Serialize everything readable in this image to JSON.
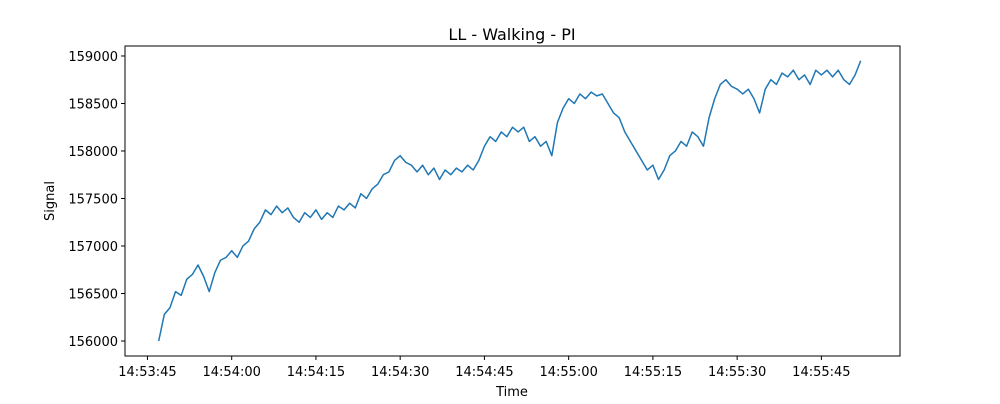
{
  "chart_data": {
    "type": "line",
    "title": "LL - Walking - PI",
    "x_label": "Time",
    "y_label": "Signal",
    "x": [
      "14:53:47",
      "14:53:48",
      "14:53:49",
      "14:53:50",
      "14:53:51",
      "14:53:52",
      "14:53:53",
      "14:53:54",
      "14:53:55",
      "14:53:56",
      "14:53:57",
      "14:53:58",
      "14:53:59",
      "14:54:00",
      "14:54:01",
      "14:54:02",
      "14:54:03",
      "14:54:04",
      "14:54:05",
      "14:54:06",
      "14:54:07",
      "14:54:08",
      "14:54:09",
      "14:54:10",
      "14:54:11",
      "14:54:12",
      "14:54:13",
      "14:54:14",
      "14:54:15",
      "14:54:16",
      "14:54:17",
      "14:54:18",
      "14:54:19",
      "14:54:20",
      "14:54:21",
      "14:54:22",
      "14:54:23",
      "14:54:24",
      "14:54:25",
      "14:54:26",
      "14:54:27",
      "14:54:28",
      "14:54:29",
      "14:54:30",
      "14:54:31",
      "14:54:32",
      "14:54:33",
      "14:54:34",
      "14:54:35",
      "14:54:36",
      "14:54:37",
      "14:54:38",
      "14:54:39",
      "14:54:40",
      "14:54:41",
      "14:54:42",
      "14:54:43",
      "14:54:44",
      "14:54:45",
      "14:54:46",
      "14:54:47",
      "14:54:48",
      "14:54:49",
      "14:54:50",
      "14:54:51",
      "14:54:52",
      "14:54:53",
      "14:54:54",
      "14:54:55",
      "14:54:56",
      "14:54:57",
      "14:54:58",
      "14:54:59",
      "14:55:00",
      "14:55:01",
      "14:55:02",
      "14:55:03",
      "14:55:04",
      "14:55:05",
      "14:55:06",
      "14:55:07",
      "14:55:08",
      "14:55:09",
      "14:55:10",
      "14:55:11",
      "14:55:12",
      "14:55:13",
      "14:55:14",
      "14:55:15",
      "14:55:16",
      "14:55:17",
      "14:55:18",
      "14:55:19",
      "14:55:20",
      "14:55:21",
      "14:55:22",
      "14:55:23",
      "14:55:24",
      "14:55:25",
      "14:55:26",
      "14:55:27",
      "14:55:28",
      "14:55:29",
      "14:55:30",
      "14:55:31",
      "14:55:32",
      "14:55:33",
      "14:55:34",
      "14:55:35",
      "14:55:36",
      "14:55:37",
      "14:55:38",
      "14:55:39",
      "14:55:40",
      "14:55:41",
      "14:55:42",
      "14:55:43",
      "14:55:44",
      "14:55:45",
      "14:55:46",
      "14:55:47",
      "14:55:48",
      "14:55:49",
      "14:55:50",
      "14:55:51",
      "14:55:52"
    ],
    "series": [
      {
        "name": "Signal",
        "color": "#1f77b4",
        "values": [
          156000,
          156280,
          156350,
          156520,
          156480,
          156650,
          156700,
          156800,
          156680,
          156520,
          156720,
          156850,
          156880,
          156950,
          156880,
          157000,
          157050,
          157180,
          157250,
          157380,
          157330,
          157420,
          157350,
          157400,
          157300,
          157250,
          157350,
          157300,
          157380,
          157280,
          157350,
          157300,
          157420,
          157380,
          157450,
          157400,
          157550,
          157500,
          157600,
          157650,
          157750,
          157780,
          157900,
          157950,
          157880,
          157850,
          157780,
          157850,
          157750,
          157820,
          157700,
          157800,
          157750,
          157820,
          157780,
          157850,
          157800,
          157900,
          158050,
          158150,
          158100,
          158200,
          158150,
          158250,
          158200,
          158250,
          158100,
          158150,
          158050,
          158100,
          157950,
          158300,
          158450,
          158550,
          158500,
          158600,
          158550,
          158620,
          158580,
          158600,
          158500,
          158400,
          158350,
          158200,
          158100,
          158000,
          157900,
          157800,
          157850,
          157700,
          157800,
          157950,
          158000,
          158100,
          158050,
          158200,
          158150,
          158050,
          158350,
          158550,
          158700,
          158750,
          158680,
          158650,
          158600,
          158650,
          158550,
          158400,
          158650,
          158750,
          158700,
          158820,
          158780,
          158850,
          158750,
          158800,
          158700,
          158850,
          158800,
          158850,
          158780,
          158850,
          158750,
          158700,
          158800,
          158950
        ]
      }
    ],
    "xlim": [
      "14:53:41",
      "14:55:59"
    ],
    "xticks": [
      "14:53:45",
      "14:54:00",
      "14:54:15",
      "14:54:30",
      "14:54:45",
      "14:55:00",
      "14:55:15",
      "14:55:30",
      "14:55:45"
    ],
    "ylim": [
      155842,
      159105
    ],
    "yticks": [
      156000,
      156500,
      157000,
      157500,
      158000,
      158500,
      159000
    ]
  }
}
